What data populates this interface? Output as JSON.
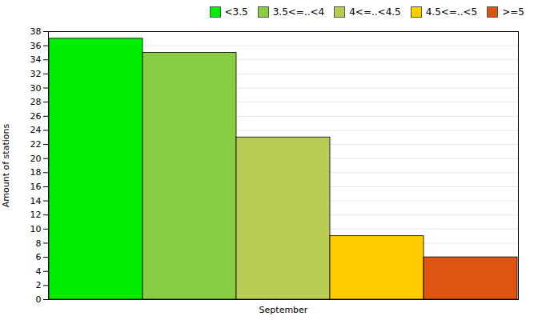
{
  "chart_data": {
    "type": "bar",
    "categories": [
      "September"
    ],
    "series": [
      {
        "name": "<3.5",
        "color": "#00ee00",
        "values": [
          37
        ]
      },
      {
        "name": "3.5<=..<4",
        "color": "#88cc44",
        "values": [
          35
        ]
      },
      {
        "name": "4<=..<4.5",
        "color": "#bbcc55",
        "values": [
          23
        ]
      },
      {
        "name": "4.5<=..<5",
        "color": "#ffcc00",
        "values": [
          9
        ]
      },
      {
        "name": ">=5",
        "color": "#dd5511",
        "values": [
          6
        ]
      }
    ],
    "ylabel": "Amount of stations",
    "ylim": [
      0,
      38
    ],
    "yticks": [
      0,
      2,
      4,
      6,
      8,
      10,
      12,
      14,
      16,
      18,
      20,
      22,
      24,
      26,
      28,
      30,
      32,
      34,
      36,
      38
    ],
    "grid": true,
    "legend": "upper right"
  }
}
